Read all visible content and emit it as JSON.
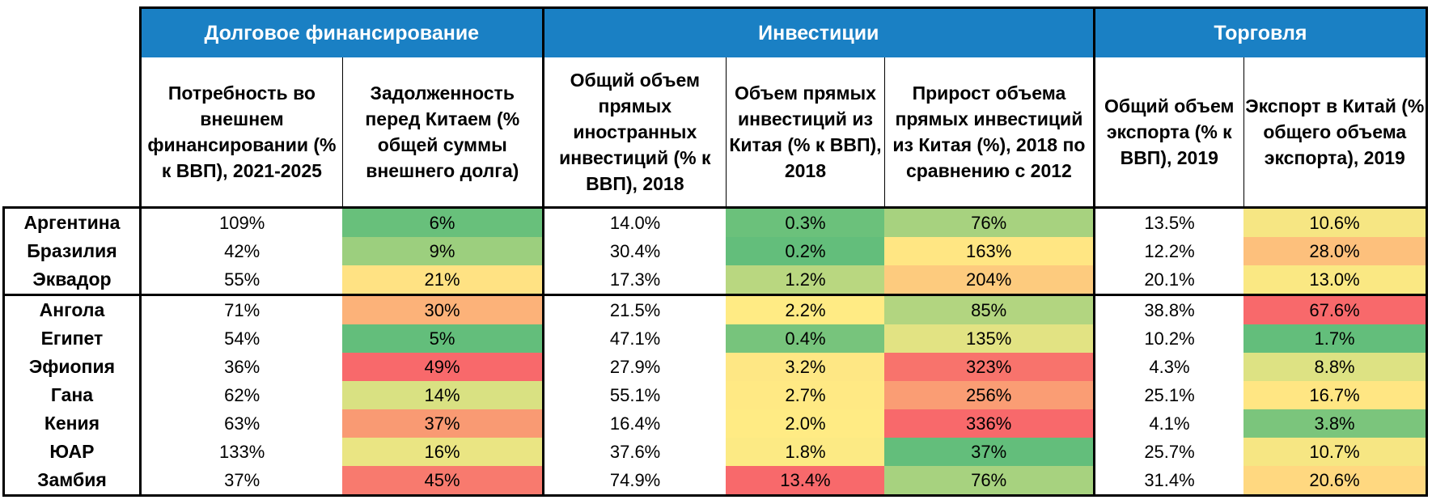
{
  "groups": {
    "debt": "Долговое финансирование",
    "investment": "Инвестиции",
    "trade": "Торговля"
  },
  "columns": [
    "Потребность во внешнем финансировании (% к ВВП), 2021-2025",
    "Задолженность перед Китаем (% общей суммы внешнего долга)",
    "Общий объем прямых иностранных инвестиций (% к ВВП), 2018",
    "Объем прямых инвестиций из Китая (% к ВВП), 2018",
    "Прирост объема прямых инвестиций из Китая (%), 2018 по сравнению с 2012",
    "Общий объем экспорта (% к ВВП), 2019",
    "Экспорт в Китай (% общего объема экспорта), 2019"
  ],
  "rows": [
    {
      "country": "Аргентина",
      "cells": [
        "109%",
        "6%",
        "14.0%",
        "0.3%",
        "76%",
        "13.5%",
        "10.6%"
      ]
    },
    {
      "country": "Бразилия",
      "cells": [
        "42%",
        "9%",
        "30.4%",
        "0.2%",
        "163%",
        "12.2%",
        "28.0%"
      ]
    },
    {
      "country": "Эквадор",
      "cells": [
        "55%",
        "21%",
        "17.3%",
        "1.2%",
        "204%",
        "20.1%",
        "13.0%"
      ]
    },
    {
      "country": "Ангола",
      "cells": [
        "71%",
        "30%",
        "21.5%",
        "2.2%",
        "85%",
        "38.8%",
        "67.6%"
      ]
    },
    {
      "country": "Египет",
      "cells": [
        "54%",
        "5%",
        "47.1%",
        "0.4%",
        "135%",
        "10.2%",
        "1.7%"
      ]
    },
    {
      "country": "Эфиопия",
      "cells": [
        "36%",
        "49%",
        "27.9%",
        "3.2%",
        "323%",
        "4.3%",
        "8.8%"
      ]
    },
    {
      "country": "Гана",
      "cells": [
        "62%",
        "14%",
        "55.1%",
        "2.7%",
        "256%",
        "25.1%",
        "16.7%"
      ]
    },
    {
      "country": "Кения",
      "cells": [
        "63%",
        "37%",
        "16.4%",
        "2.0%",
        "336%",
        "4.1%",
        "3.8%"
      ]
    },
    {
      "country": "ЮАР",
      "cells": [
        "133%",
        "16%",
        "37.6%",
        "1.8%",
        "37%",
        "25.7%",
        "10.7%"
      ]
    },
    {
      "country": "Замбия",
      "cells": [
        "37%",
        "45%",
        "74.9%",
        "13.4%",
        "76%",
        "31.4%",
        "20.6%"
      ]
    }
  ],
  "colors": {
    "header_blue": "#1a80c4",
    "heat": {
      "deep_green": "#63be7b",
      "green": "#85c87d",
      "light_green": "#a7d27f",
      "yellow_green": "#dde283",
      "yellow": "#ffeb84",
      "light_orange": "#fdd17f",
      "orange": "#fbb379",
      "dark_orange": "#f99b73",
      "red_orange": "#f8806e",
      "red": "#f8696b"
    },
    "cell_colors": [
      [
        null,
        "#68c07b",
        null,
        "#6bc17b",
        "#a7d27f",
        null,
        "#f6e683"
      ],
      [
        null,
        "#9ccf7e",
        null,
        "#63be7b",
        "#ffe683",
        null,
        "#fdc07c"
      ],
      [
        null,
        "#ffe283",
        null,
        "#b9d780",
        "#fdcb7e",
        null,
        "#fae883"
      ],
      [
        null,
        "#fcb279",
        null,
        "#ffeb84",
        "#b2d580",
        null,
        "#f8696b"
      ],
      [
        null,
        "#63be7b",
        null,
        "#77c47c",
        "#e2e383",
        null,
        "#63be7b"
      ],
      [
        null,
        "#f8696b",
        null,
        "#fee784",
        "#f8736c",
        null,
        "#dde283"
      ],
      [
        null,
        "#d9e182",
        null,
        "#ffe984",
        "#fa9d74",
        null,
        "#ffe683"
      ],
      [
        null,
        "#f99a73",
        null,
        "#ffeb84",
        "#f8696b",
        null,
        "#7bc57c"
      ],
      [
        null,
        "#eae583",
        null,
        "#fcea84",
        "#63be7b",
        null,
        "#f6e683"
      ],
      [
        null,
        "#f87a6e",
        null,
        "#f8696b",
        "#a7d27f",
        null,
        "#ffd880"
      ]
    ]
  }
}
